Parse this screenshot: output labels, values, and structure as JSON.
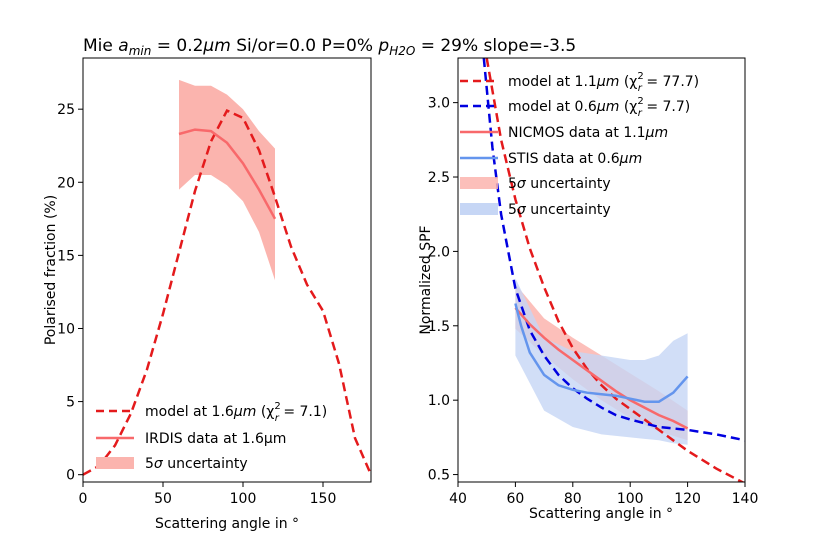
{
  "title": "Mie $a_{min}=0.2\\mu m$ Si/or=0.0 P=0% $p_{H2O}=29\\%$ slope=-3.5",
  "title_parts": {
    "prefix": "Mie ",
    "amin_sym": "a",
    "amin_sub": "min",
    "amin_val": " = 0.2",
    "amin_unit": "μm",
    "middle": " Si/or=0.0 P=0% ",
    "p_sym": "p",
    "p_sub": "H2O",
    "p_val": " = 29% slope=-3.5"
  },
  "colors": {
    "red": "#e41a1c",
    "salmon": "#f8696b",
    "salmon_band": "#fbb4ae",
    "blue": "#0000e0",
    "cornflower": "#6495ed",
    "blue_band": "#c6d6f5"
  },
  "chart_data": [
    {
      "type": "line",
      "id": "left",
      "xlabel": "Scattering angle in  °",
      "ylabel": "Polarised fraction (%)",
      "xlim": [
        0,
        180
      ],
      "ylim": [
        -0.5,
        28.5
      ],
      "xticks": [
        0,
        50,
        100,
        150
      ],
      "yticks": [
        0,
        5,
        10,
        15,
        20,
        25
      ],
      "legend": "lower-left",
      "series": [
        {
          "name": "model at 1.6μm (χ²_r = 7.1)",
          "label_main": "model at 1.6",
          "label_unit": "μm",
          "label_chi": " (χ",
          "label_chi_sup": "2",
          "label_chi_sub": "r",
          "label_val": " = 7.1)",
          "style": "dashed",
          "color": "#e41a1c",
          "x": [
            0,
            10,
            20,
            30,
            40,
            50,
            60,
            70,
            80,
            90,
            100,
            110,
            120,
            130,
            140,
            150,
            160,
            170,
            180
          ],
          "y": [
            0,
            0.6,
            2.0,
            4.2,
            7.2,
            11.0,
            15.2,
            19.4,
            22.8,
            24.9,
            24.4,
            22.2,
            19.0,
            15.6,
            13.0,
            11.2,
            7.6,
            2.5,
            0
          ]
        },
        {
          "name": "IRDIS data at 1.6μm",
          "style": "solid",
          "color": "#f8696b",
          "x": [
            60,
            70,
            80,
            90,
            100,
            110,
            120
          ],
          "y": [
            23.3,
            23.6,
            23.5,
            22.7,
            21.3,
            19.5,
            17.5
          ]
        }
      ],
      "band": {
        "name": "5σ uncertainty",
        "label_main": "5",
        "label_sigma": "σ",
        "label_rest": " uncertainty",
        "color": "#fbb4ae",
        "x": [
          60,
          70,
          80,
          90,
          100,
          110,
          120
        ],
        "upper": [
          27.0,
          26.6,
          26.6,
          26.0,
          25.0,
          23.5,
          22.3
        ],
        "lower": [
          19.5,
          20.5,
          20.5,
          19.8,
          18.7,
          16.6,
          13.3
        ]
      }
    },
    {
      "type": "line",
      "id": "right",
      "xlabel": "Scattering angle in  °",
      "ylabel": "Normalized SPF",
      "xlim": [
        40,
        140
      ],
      "ylim": [
        0.45,
        3.3
      ],
      "xticks": [
        40,
        60,
        80,
        100,
        120,
        140
      ],
      "yticks": [
        0.5,
        1.0,
        1.5,
        2.0,
        2.5,
        3.0
      ],
      "ytick_labels": [
        "0.5",
        "1.0",
        "1.5",
        "2.0",
        "2.5",
        "3.0"
      ],
      "legend": "top-right",
      "series": [
        {
          "name": "model at 1.1μm (χ²_r = 77.7)",
          "label_main": "model at 1.1",
          "label_unit": "μm",
          "label_chi": " (χ",
          "label_chi_sup": "2",
          "label_chi_sub": "r",
          "label_val": " = 77.7)",
          "style": "dashed",
          "color": "#e41a1c",
          "x": [
            50,
            55,
            60,
            65,
            70,
            75,
            80,
            85,
            90,
            95,
            100,
            110,
            120,
            130,
            140
          ],
          "y": [
            3.3,
            2.75,
            2.35,
            2.02,
            1.76,
            1.53,
            1.35,
            1.21,
            1.1,
            1.01,
            0.94,
            0.8,
            0.66,
            0.54,
            0.44
          ]
        },
        {
          "name": "model at 0.6μm (χ²_r = 7.7)",
          "label_main": "model at 0.6",
          "label_unit": "μm",
          "label_chi": " (χ",
          "label_chi_sup": "2",
          "label_chi_sub": "r",
          "label_val": " = 7.7)",
          "style": "dashed",
          "color": "#0000e0",
          "x": [
            49,
            52,
            55,
            60,
            65,
            70,
            75,
            80,
            85,
            90,
            95,
            100,
            110,
            120,
            130,
            140
          ],
          "y": [
            3.3,
            2.7,
            2.25,
            1.75,
            1.47,
            1.3,
            1.17,
            1.08,
            1.01,
            0.95,
            0.9,
            0.87,
            0.82,
            0.8,
            0.77,
            0.73
          ]
        },
        {
          "name": "NICMOS data at 1.1μm",
          "label_main": "NICMOS data at 1.1",
          "label_unit": "μm",
          "style": "solid",
          "color": "#f8696b",
          "x": [
            60,
            65,
            70,
            75,
            80,
            85,
            90,
            95,
            100,
            105,
            110,
            115,
            120
          ],
          "y": [
            1.62,
            1.51,
            1.42,
            1.34,
            1.27,
            1.2,
            1.13,
            1.06,
            1.0,
            0.95,
            0.9,
            0.86,
            0.81
          ]
        },
        {
          "name": "STIS data at 0.6μm",
          "label_main": "STIS data at 0.6",
          "label_unit": "μm",
          "style": "solid",
          "color": "#6495ed",
          "x": [
            60,
            62,
            65,
            70,
            75,
            80,
            85,
            90,
            95,
            100,
            105,
            110,
            115,
            120
          ],
          "y": [
            1.65,
            1.5,
            1.32,
            1.17,
            1.1,
            1.07,
            1.05,
            1.04,
            1.03,
            1.01,
            0.99,
            0.99,
            1.05,
            1.16
          ]
        }
      ],
      "bands": [
        {
          "name": "5σ uncertainty",
          "label_main": "5",
          "label_sigma": "σ",
          "label_rest": " uncertainty",
          "color": "#fbb4ae",
          "x": [
            60,
            70,
            80,
            90,
            100,
            110,
            120
          ],
          "upper": [
            1.78,
            1.55,
            1.42,
            1.3,
            1.18,
            1.06,
            0.93
          ],
          "lower": [
            1.48,
            1.3,
            1.14,
            1.0,
            0.88,
            0.79,
            0.73
          ]
        },
        {
          "name": "5σ uncertainty",
          "label_main": "5",
          "label_sigma": "σ",
          "label_rest": " uncertainty",
          "color": "#c6d6f5",
          "x": [
            60,
            70,
            80,
            90,
            100,
            105,
            110,
            115,
            120
          ],
          "upper": [
            1.82,
            1.42,
            1.33,
            1.3,
            1.27,
            1.27,
            1.3,
            1.4,
            1.45
          ],
          "lower": [
            1.3,
            0.93,
            0.82,
            0.77,
            0.75,
            0.74,
            0.73,
            0.71,
            0.7
          ]
        }
      ]
    }
  ]
}
